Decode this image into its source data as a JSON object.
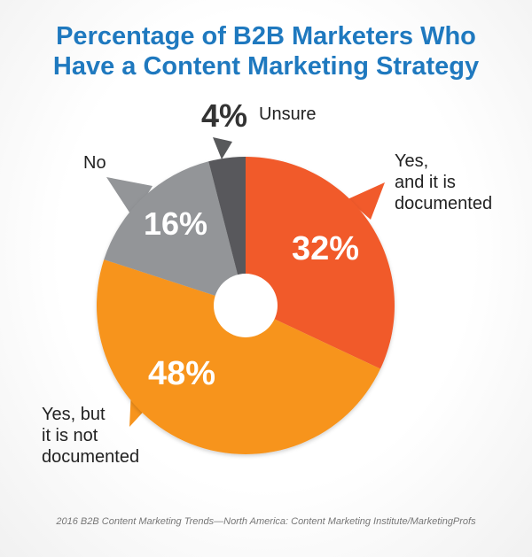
{
  "chart_data": {
    "type": "pie",
    "title": [
      "Percentage of B2B Marketers Who",
      "Have a Content Marketing Strategy"
    ],
    "slices": [
      {
        "label": [
          "Yes,",
          "and it is",
          "documented"
        ],
        "value": 32,
        "value_label": "32%",
        "color": "#f15a2b"
      },
      {
        "label": [
          "Yes, but",
          "it is not",
          "documented"
        ],
        "value": 48,
        "value_label": "48%",
        "color": "#f7941d"
      },
      {
        "label": [
          "No"
        ],
        "value": 16,
        "value_label": "16%",
        "color": "#939598"
      },
      {
        "label": [
          "Unsure"
        ],
        "value": 4,
        "value_label": "4%",
        "color": "#58595b"
      }
    ],
    "donut_hole": true
  },
  "source": "2016 B2B Content Marketing Trends—North America: Content Marketing Institute/MarketingProfs"
}
